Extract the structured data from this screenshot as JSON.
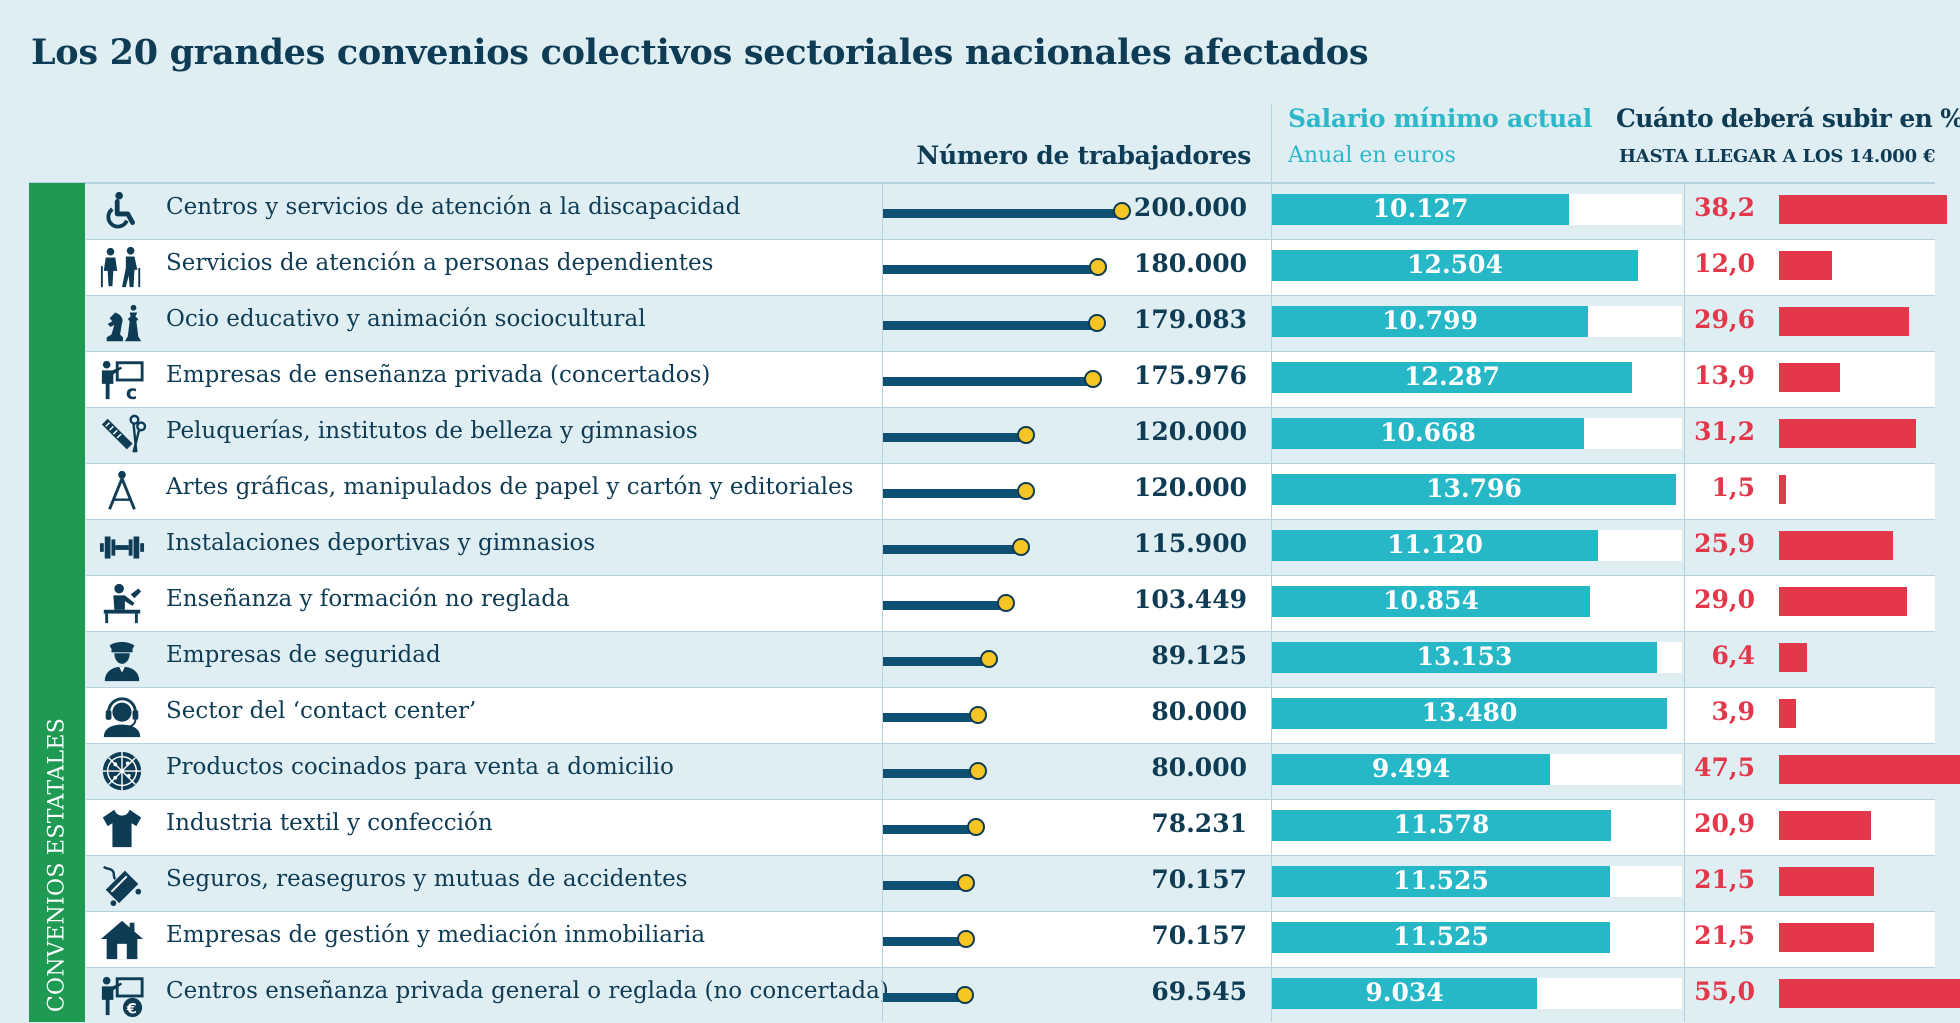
{
  "title": "Los 20 grandes convenios colectivos sectoriales nacionales afectados",
  "headers": {
    "workers": "Número de trabajadores",
    "salary": "Salario mínimo actual",
    "salary_sub": "Anual en euros",
    "pct": "Cuánto deberá subir en %",
    "pct_sub": "HASTA LLEGAR A LOS 14.000 €"
  },
  "sidebar_label": "CONVENIOS ESTATALES",
  "colors": {
    "workers_bar": "#0e5172",
    "workers_dot": "#f5c623",
    "salary_bar": "#27b8c7",
    "pct_bar": "#e2384a",
    "sidebar": "#1e9a52"
  },
  "chart_data": {
    "type": "table",
    "title": "Los 20 grandes convenios colectivos sectoriales nacionales afectados",
    "columns": [
      "Sector",
      "Número de trabajadores",
      "Salario mínimo actual (Anual en euros)",
      "Cuánto deberá subir en %"
    ],
    "rows": [
      {
        "icon": "wheelchair-icon",
        "sector": "Centros y servicios de atención a la discapacidad",
        "workers": 200000,
        "workers_label": "200.000",
        "salary": 10127,
        "salary_label": "10.127",
        "pct": 38.2,
        "pct_label": "38,2"
      },
      {
        "icon": "elderly-people-icon",
        "sector": "Servicios de atención a personas dependientes",
        "workers": 180000,
        "workers_label": "180.000",
        "salary": 12504,
        "salary_label": "12.504",
        "pct": 12.0,
        "pct_label": "12,0"
      },
      {
        "icon": "chess-pieces-icon",
        "sector": "Ocio educativo y animación sociocultural",
        "workers": 179083,
        "workers_label": "179.083",
        "salary": 10799,
        "salary_label": "10.799",
        "pct": 29.6,
        "pct_label": "29,6"
      },
      {
        "icon": "teacher-board-icon",
        "sector": "Empresas de enseñanza privada (concertados)",
        "workers": 175976,
        "workers_label": "175.976",
        "salary": 12287,
        "salary_label": "12.287",
        "pct": 13.9,
        "pct_label": "13,9"
      },
      {
        "icon": "comb-scissors-icon",
        "sector": "Peluquerías, institutos de belleza y gimnasios",
        "workers": 120000,
        "workers_label": "120.000",
        "salary": 10668,
        "salary_label": "10.668",
        "pct": 31.2,
        "pct_label": "31,2"
      },
      {
        "icon": "compass-icon",
        "sector": "Artes gráficas, manipulados de papel y cartón y editoriales",
        "workers": 120000,
        "workers_label": "120.000",
        "salary": 13796,
        "salary_label": "13.796",
        "pct": 1.5,
        "pct_label": "1,5"
      },
      {
        "icon": "dumbbell-icon",
        "sector": "Instalaciones deportivas y gimnasios",
        "workers": 115900,
        "workers_label": "115.900",
        "salary": 11120,
        "salary_label": "11.120",
        "pct": 25.9,
        "pct_label": "25,9"
      },
      {
        "icon": "student-desk-icon",
        "sector": "Enseñanza y formación no reglada",
        "workers": 103449,
        "workers_label": "103.449",
        "salary": 10854,
        "salary_label": "10.854",
        "pct": 29.0,
        "pct_label": "29,0"
      },
      {
        "icon": "security-guard-icon",
        "sector": "Empresas de seguridad",
        "workers": 89125,
        "workers_label": "89.125",
        "salary": 13153,
        "salary_label": "13.153",
        "pct": 6.4,
        "pct_label": "6,4"
      },
      {
        "icon": "headset-operator-icon",
        "sector": "Sector del ‘contact center’",
        "workers": 80000,
        "workers_label": "80.000",
        "salary": 13480,
        "salary_label": "13.480",
        "pct": 3.9,
        "pct_label": "3,9"
      },
      {
        "icon": "pizza-icon",
        "sector": "Productos cocinados para venta a domicilio",
        "workers": 80000,
        "workers_label": "80.000",
        "salary": 9494,
        "salary_label": "9.494",
        "pct": 47.5,
        "pct_label": "47,5"
      },
      {
        "icon": "tshirt-icon",
        "sector": "Industria textil y confección",
        "workers": 78231,
        "workers_label": "78.231",
        "salary": 11578,
        "salary_label": "11.578",
        "pct": 20.9,
        "pct_label": "20,9"
      },
      {
        "icon": "car-accident-icon",
        "sector": "Seguros, reaseguros y mutuas de accidentes",
        "workers": 70157,
        "workers_label": "70.157",
        "salary": 11525,
        "salary_label": "11.525",
        "pct": 21.5,
        "pct_label": "21,5"
      },
      {
        "icon": "house-icon",
        "sector": "Empresas de gestión y mediación inmobiliaria",
        "workers": 70157,
        "workers_label": "70.157",
        "salary": 11525,
        "salary_label": "11.525",
        "pct": 21.5,
        "pct_label": "21,5"
      },
      {
        "icon": "teacher-euro-icon",
        "sector": "Centros enseñanza privada general o reglada (no concertada)",
        "workers": 69545,
        "workers_label": "69.545",
        "salary": 9034,
        "salary_label": "9.034",
        "pct": 55.0,
        "pct_label": "55,0"
      }
    ],
    "workers_max": 200000,
    "salary_max": 14000,
    "pct_max": 55.0
  }
}
